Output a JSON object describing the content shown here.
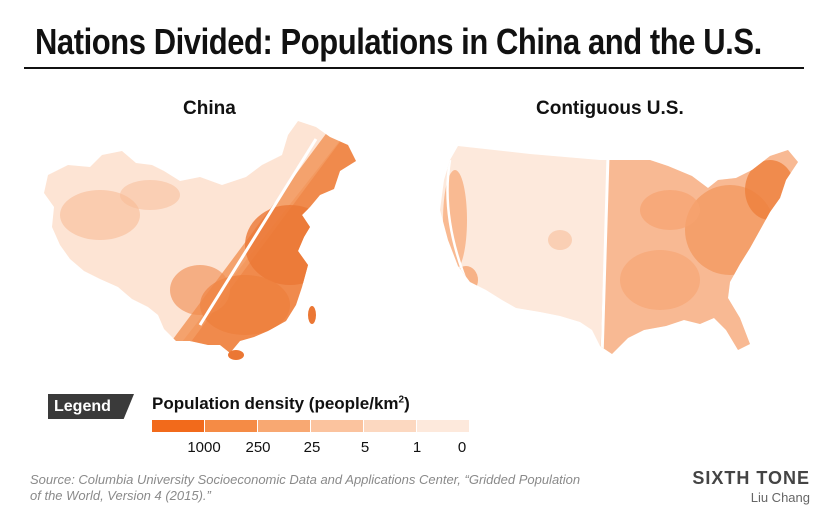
{
  "title": "Nations Divided: Populations in China and the U.S.",
  "maps": {
    "china_label": "China",
    "us_label": "Contiguous U.S."
  },
  "legend": {
    "tag": "Legend",
    "title_text": "Population density (people/km",
    "title_sup": "2",
    "title_close": ")",
    "classes": [
      {
        "label": "1000",
        "color": "#f26a1b"
      },
      {
        "label": "250",
        "color": "#f58b45"
      },
      {
        "label": "25",
        "color": "#f8a872"
      },
      {
        "label": "5",
        "color": "#fbc39e"
      },
      {
        "label": "1",
        "color": "#fcd8c0"
      },
      {
        "label": "0",
        "color": "#fde9dc"
      }
    ]
  },
  "source": "Source: Columbia University Socioeconomic Data and Applications Center, “Gridded Population of the World, Version 4 (2015).”",
  "brand": {
    "name": "SIXTH TONE",
    "author": "Liu Chang"
  },
  "colors": {
    "dense": "#f07a35",
    "medium": "#f6a36f",
    "light": "#fde4d4",
    "divider": "#ffffff"
  }
}
